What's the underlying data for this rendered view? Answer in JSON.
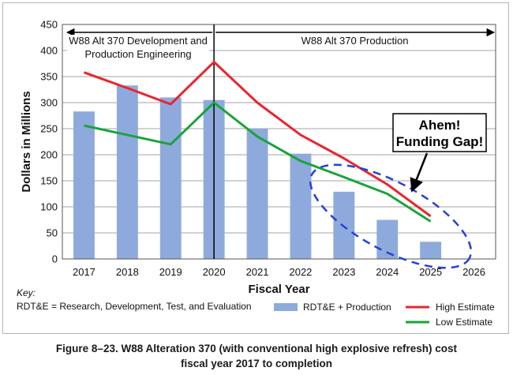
{
  "chart_data": {
    "type": "bar",
    "categories": [
      "2017",
      "2018",
      "2019",
      "2020",
      "2021",
      "2022",
      "2023",
      "2024",
      "2025",
      "2026"
    ],
    "series": [
      {
        "name": "RDT&E + Production",
        "type": "bar",
        "color": "#8eaadc",
        "values": [
          283,
          333,
          310,
          305,
          250,
          202,
          129,
          75,
          33,
          null
        ]
      },
      {
        "name": "High Estimate",
        "type": "line",
        "color": "#e8262e",
        "values": [
          358,
          328,
          297,
          378,
          300,
          238,
          193,
          143,
          82,
          null
        ]
      },
      {
        "name": "Low Estimate",
        "type": "line",
        "color": "#1aa33a",
        "values": [
          256,
          238,
          220,
          300,
          235,
          188,
          157,
          125,
          72,
          null
        ]
      }
    ],
    "xlabel": "Fiscal Year",
    "ylabel": "Dollars in Millions",
    "ylim": [
      0,
      450
    ],
    "yticks": [
      0,
      50,
      100,
      150,
      200,
      250,
      300,
      350,
      400,
      450
    ],
    "grid": true,
    "phases": [
      {
        "label_lines": [
          "W88 Alt 370 Development and",
          "Production Engineering"
        ]
      },
      {
        "label_lines": [
          "W88 Alt 370 Production"
        ]
      }
    ],
    "annotation": {
      "lines": [
        "Ahem!",
        "Funding Gap!"
      ]
    },
    "key_title": "Key:",
    "key_definition": "RDT&E = Research, Development, Test, and Evaluation"
  },
  "caption": {
    "line1": "Figure 8–23.  W88 Alteration 370 (with conventional high explosive refresh) cost",
    "line2": "fiscal year 2017 to completion"
  }
}
